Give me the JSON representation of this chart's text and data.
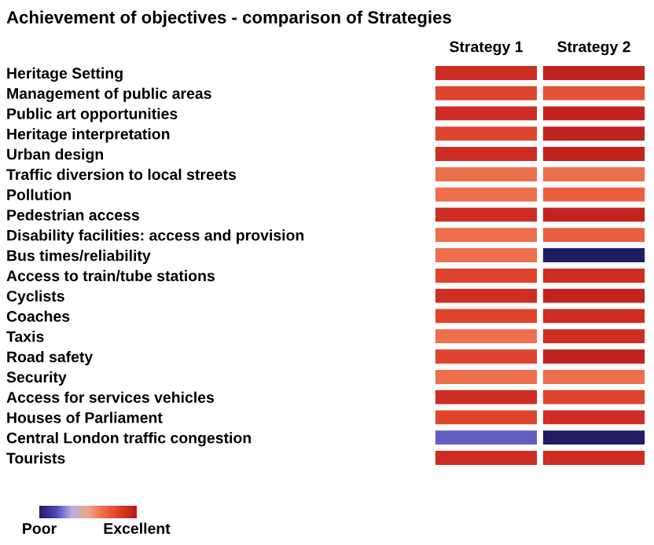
{
  "chart_data": {
    "type": "heatmap",
    "title": "Achievement of objectives - comparison of Strategies",
    "categories": [
      "Strategy 1",
      "Strategy 2"
    ],
    "y_categories": [
      "Heritage Setting",
      "Management of public areas",
      "Public art opportunities",
      "Heritage interpretation",
      "Urban design",
      "Traffic diversion to local streets",
      "Pollution",
      "Pedestrian access",
      "Disability facilities: access and provision",
      "Bus times/reliability",
      "Access to train/tube stations",
      "Cyclists",
      "Coaches",
      "Taxis",
      "Road safety",
      "Security",
      "Access for services vehicles",
      "Houses of Parliament",
      "Central London traffic congestion",
      "Tourists"
    ],
    "cells": [
      [
        0.9,
        0.95
      ],
      [
        0.8,
        0.75
      ],
      [
        0.9,
        0.95
      ],
      [
        0.8,
        0.95
      ],
      [
        0.9,
        0.95
      ],
      [
        0.65,
        0.65
      ],
      [
        0.65,
        0.7
      ],
      [
        0.9,
        0.95
      ],
      [
        0.65,
        0.7
      ],
      [
        0.65,
        0.0
      ],
      [
        0.8,
        0.9
      ],
      [
        0.9,
        0.95
      ],
      [
        0.8,
        0.9
      ],
      [
        0.65,
        0.9
      ],
      [
        0.8,
        0.95
      ],
      [
        0.65,
        0.65
      ],
      [
        0.9,
        0.8
      ],
      [
        0.8,
        0.9
      ],
      [
        0.2,
        0.0
      ],
      [
        0.9,
        0.9
      ]
    ],
    "clim": [
      0,
      1
    ],
    "cticks": [
      {
        "value": 0,
        "label": "Poor"
      },
      {
        "value": 1,
        "label": "Excellent"
      }
    ]
  }
}
